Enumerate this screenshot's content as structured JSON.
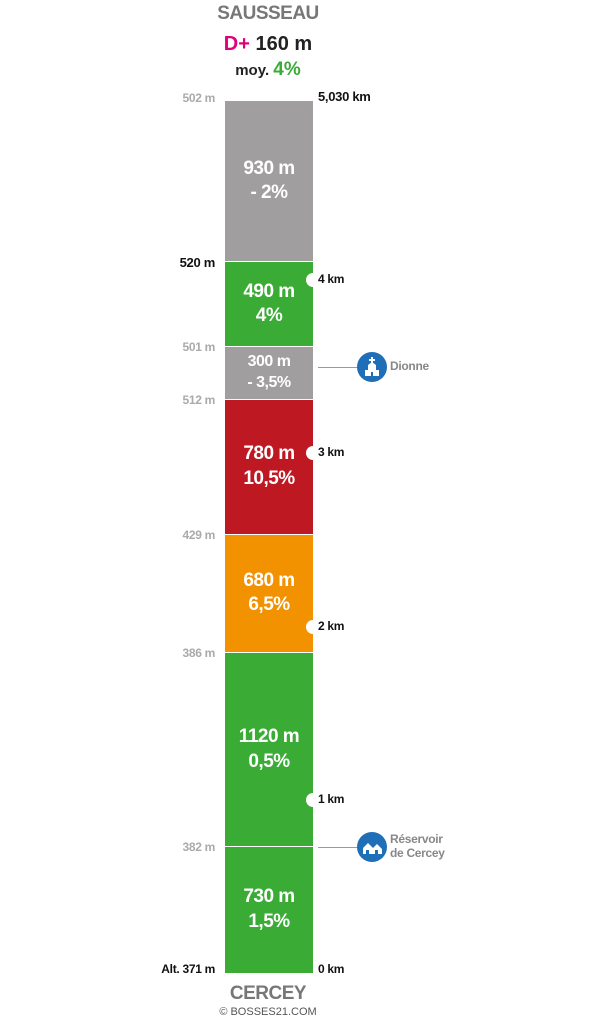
{
  "header": {
    "summit_name": "SAUSSEAU",
    "dplus_label": "D+",
    "dplus_value": "160 m",
    "avg_label": "moy.",
    "avg_value": "4%"
  },
  "footer": {
    "start_name": "CERCEY",
    "copyright": "© BOSSES21.COM"
  },
  "colors": {
    "gray": "#a09e9f",
    "green": "#3aab35",
    "red": "#be1823",
    "orange": "#f39200",
    "accent_pink": "#e0007a",
    "poi_blue": "#1f6fb8"
  },
  "chart_data": {
    "type": "stacked-profile",
    "total_distance": "5,030 km",
    "segments": [
      {
        "length_label": "930 m",
        "slope_label": "- 2%",
        "length_m": 930,
        "slope_pct": -2,
        "color": "gray"
      },
      {
        "length_label": "490 m",
        "slope_label": "4%",
        "length_m": 490,
        "slope_pct": 4,
        "color": "green"
      },
      {
        "length_label": "300 m",
        "slope_label": "- 3,5%",
        "length_m": 300,
        "slope_pct": -3.5,
        "color": "gray"
      },
      {
        "length_label": "780 m",
        "slope_label": "10,5%",
        "length_m": 780,
        "slope_pct": 10.5,
        "color": "red"
      },
      {
        "length_label": "680 m",
        "slope_label": "6,5%",
        "length_m": 680,
        "slope_pct": 6.5,
        "color": "orange"
      },
      {
        "length_label": "1120 m",
        "slope_label": "0,5%",
        "length_m": 1120,
        "slope_pct": 0.5,
        "color": "green"
      },
      {
        "length_label": "730 m",
        "slope_label": "1,5%",
        "length_m": 730,
        "slope_pct": 1.5,
        "color": "green"
      }
    ],
    "altitudes": [
      {
        "label": "502 m",
        "style": "gray"
      },
      {
        "label": "520 m",
        "style": "dark"
      },
      {
        "label": "501 m",
        "style": "gray"
      },
      {
        "label": "512 m",
        "style": "gray"
      },
      {
        "label": "429 m",
        "style": "gray"
      },
      {
        "label": "386 m",
        "style": "gray"
      },
      {
        "label": "382 m",
        "style": "gray"
      },
      {
        "label": "Alt. 371 m",
        "style": "dark"
      }
    ],
    "km_markers": [
      {
        "label": "4 km",
        "km": 4
      },
      {
        "label": "3 km",
        "km": 3
      },
      {
        "label": "2 km",
        "km": 2
      },
      {
        "label": "1 km",
        "km": 1
      },
      {
        "label": "0 km",
        "km": 0
      }
    ],
    "pois": [
      {
        "name_lines": [
          "Dionne"
        ],
        "km": 3.5,
        "icon": "church-icon"
      },
      {
        "name_lines": [
          "Réservoir",
          "de Cercey"
        ],
        "km": 0.73,
        "icon": "houses-icon"
      }
    ]
  }
}
